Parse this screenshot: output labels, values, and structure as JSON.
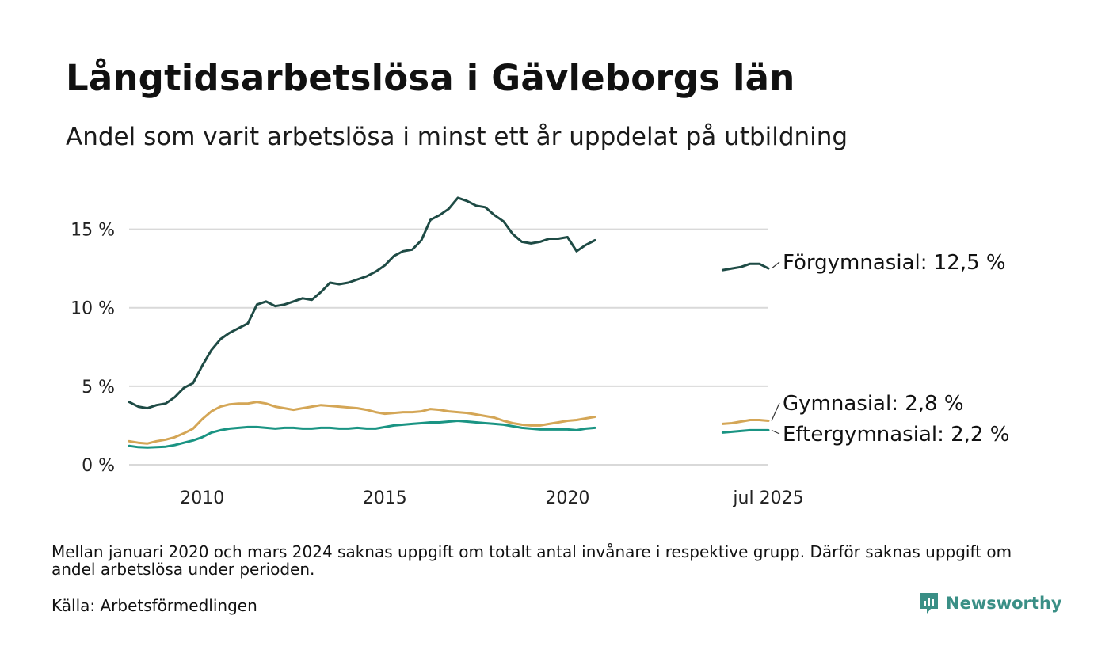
{
  "title": "Långtidsarbetslösa i Gävleborgs län",
  "subtitle": "Andel som varit arbetslösa i minst ett år uppdelat på utbildning",
  "note": "Mellan januari 2020 och mars 2024 saknas uppgift om totalt antal invånare i respektive grupp. Därför saknas uppgift om andel arbetslösa under perioden.",
  "source": "Källa: Arbetsförmedlingen",
  "brand": "Newsworthy",
  "colors": {
    "forgymnasial": "#1e4b45",
    "gymnasial": "#d4a656",
    "eftergymnasial": "#1a9483",
    "grid": "#d9d9d9",
    "brand": "#3a8f86"
  },
  "chart_data": {
    "type": "line",
    "ylim": [
      0,
      17.5
    ],
    "yticks": [
      0,
      5,
      10,
      15
    ],
    "ytick_labels": [
      "0 %",
      "5 %",
      "10 %",
      "15 %"
    ],
    "xtick_labels": [
      {
        "x": 2010,
        "label": "2010"
      },
      {
        "x": 2015,
        "label": "2015"
      },
      {
        "x": 2020,
        "label": "2020"
      },
      {
        "x": 2025.5,
        "label": "jul 2025"
      }
    ],
    "series": [
      {
        "key": "forgymnasial",
        "label": "Förgymnasial: 12,5 %",
        "segments": [
          [
            [
              2008.0,
              4.0
            ],
            [
              2008.25,
              3.7
            ],
            [
              2008.5,
              3.6
            ],
            [
              2008.75,
              3.8
            ],
            [
              2009.0,
              3.9
            ],
            [
              2009.25,
              4.3
            ],
            [
              2009.5,
              4.9
            ],
            [
              2009.75,
              5.2
            ],
            [
              2010.0,
              6.3
            ],
            [
              2010.25,
              7.3
            ],
            [
              2010.5,
              8.0
            ],
            [
              2010.75,
              8.4
            ],
            [
              2011.0,
              8.7
            ],
            [
              2011.25,
              9.0
            ],
            [
              2011.5,
              10.2
            ],
            [
              2011.75,
              10.4
            ],
            [
              2012.0,
              10.1
            ],
            [
              2012.25,
              10.2
            ],
            [
              2012.5,
              10.4
            ],
            [
              2012.75,
              10.6
            ],
            [
              2013.0,
              10.5
            ],
            [
              2013.25,
              11.0
            ],
            [
              2013.5,
              11.6
            ],
            [
              2013.75,
              11.5
            ],
            [
              2014.0,
              11.6
            ],
            [
              2014.25,
              11.8
            ],
            [
              2014.5,
              12.0
            ],
            [
              2014.75,
              12.3
            ],
            [
              2015.0,
              12.7
            ],
            [
              2015.25,
              13.3
            ],
            [
              2015.5,
              13.6
            ],
            [
              2015.75,
              13.7
            ],
            [
              2016.0,
              14.3
            ],
            [
              2016.25,
              15.6
            ],
            [
              2016.5,
              15.9
            ],
            [
              2016.75,
              16.3
            ],
            [
              2017.0,
              17.0
            ],
            [
              2017.25,
              16.8
            ],
            [
              2017.5,
              16.5
            ],
            [
              2017.75,
              16.4
            ],
            [
              2018.0,
              15.9
            ],
            [
              2018.25,
              15.5
            ],
            [
              2018.5,
              14.7
            ],
            [
              2018.75,
              14.2
            ],
            [
              2019.0,
              14.1
            ],
            [
              2019.25,
              14.2
            ],
            [
              2019.5,
              14.4
            ],
            [
              2019.75,
              14.4
            ],
            [
              2020.0,
              14.5
            ],
            [
              2020.25,
              13.6
            ],
            [
              2020.5,
              14.0
            ],
            [
              2020.75,
              14.3
            ]
          ],
          [
            [
              2024.25,
              12.4
            ],
            [
              2024.5,
              12.5
            ],
            [
              2024.75,
              12.6
            ],
            [
              2025.0,
              12.8
            ],
            [
              2025.25,
              12.8
            ],
            [
              2025.5,
              12.5
            ]
          ]
        ]
      },
      {
        "key": "gymnasial",
        "label": "Gymnasial:  2,8 %",
        "segments": [
          [
            [
              2008.0,
              1.5
            ],
            [
              2008.25,
              1.4
            ],
            [
              2008.5,
              1.35
            ],
            [
              2008.75,
              1.5
            ],
            [
              2009.0,
              1.6
            ],
            [
              2009.25,
              1.75
            ],
            [
              2009.5,
              2.0
            ],
            [
              2009.75,
              2.3
            ],
            [
              2010.0,
              2.9
            ],
            [
              2010.25,
              3.4
            ],
            [
              2010.5,
              3.7
            ],
            [
              2010.75,
              3.85
            ],
            [
              2011.0,
              3.9
            ],
            [
              2011.25,
              3.9
            ],
            [
              2011.5,
              4.0
            ],
            [
              2011.75,
              3.9
            ],
            [
              2012.0,
              3.7
            ],
            [
              2012.25,
              3.6
            ],
            [
              2012.5,
              3.5
            ],
            [
              2012.75,
              3.6
            ],
            [
              2013.0,
              3.7
            ],
            [
              2013.25,
              3.8
            ],
            [
              2013.5,
              3.75
            ],
            [
              2013.75,
              3.7
            ],
            [
              2014.0,
              3.65
            ],
            [
              2014.25,
              3.6
            ],
            [
              2014.5,
              3.5
            ],
            [
              2014.75,
              3.35
            ],
            [
              2015.0,
              3.25
            ],
            [
              2015.25,
              3.3
            ],
            [
              2015.5,
              3.35
            ],
            [
              2015.75,
              3.35
            ],
            [
              2016.0,
              3.4
            ],
            [
              2016.25,
              3.55
            ],
            [
              2016.5,
              3.5
            ],
            [
              2016.75,
              3.4
            ],
            [
              2017.0,
              3.35
            ],
            [
              2017.25,
              3.3
            ],
            [
              2017.5,
              3.2
            ],
            [
              2017.75,
              3.1
            ],
            [
              2018.0,
              3.0
            ],
            [
              2018.25,
              2.8
            ],
            [
              2018.5,
              2.65
            ],
            [
              2018.75,
              2.55
            ],
            [
              2019.0,
              2.5
            ],
            [
              2019.25,
              2.5
            ],
            [
              2019.5,
              2.6
            ],
            [
              2019.75,
              2.7
            ],
            [
              2020.0,
              2.8
            ],
            [
              2020.25,
              2.85
            ],
            [
              2020.5,
              2.95
            ],
            [
              2020.75,
              3.05
            ]
          ],
          [
            [
              2024.25,
              2.6
            ],
            [
              2024.5,
              2.65
            ],
            [
              2024.75,
              2.75
            ],
            [
              2025.0,
              2.85
            ],
            [
              2025.25,
              2.85
            ],
            [
              2025.5,
              2.8
            ]
          ]
        ]
      },
      {
        "key": "eftergymnasial",
        "label": "Eftergymnasial:  2,2 %",
        "segments": [
          [
            [
              2008.0,
              1.2
            ],
            [
              2008.25,
              1.12
            ],
            [
              2008.5,
              1.1
            ],
            [
              2008.75,
              1.12
            ],
            [
              2009.0,
              1.15
            ],
            [
              2009.25,
              1.25
            ],
            [
              2009.5,
              1.4
            ],
            [
              2009.75,
              1.55
            ],
            [
              2010.0,
              1.75
            ],
            [
              2010.25,
              2.05
            ],
            [
              2010.5,
              2.2
            ],
            [
              2010.75,
              2.3
            ],
            [
              2011.0,
              2.35
            ],
            [
              2011.25,
              2.4
            ],
            [
              2011.5,
              2.4
            ],
            [
              2011.75,
              2.35
            ],
            [
              2012.0,
              2.3
            ],
            [
              2012.25,
              2.35
            ],
            [
              2012.5,
              2.35
            ],
            [
              2012.75,
              2.3
            ],
            [
              2013.0,
              2.3
            ],
            [
              2013.25,
              2.35
            ],
            [
              2013.5,
              2.35
            ],
            [
              2013.75,
              2.3
            ],
            [
              2014.0,
              2.3
            ],
            [
              2014.25,
              2.35
            ],
            [
              2014.5,
              2.3
            ],
            [
              2014.75,
              2.3
            ],
            [
              2015.0,
              2.4
            ],
            [
              2015.25,
              2.5
            ],
            [
              2015.5,
              2.55
            ],
            [
              2015.75,
              2.6
            ],
            [
              2016.0,
              2.65
            ],
            [
              2016.25,
              2.7
            ],
            [
              2016.5,
              2.7
            ],
            [
              2016.75,
              2.75
            ],
            [
              2017.0,
              2.8
            ],
            [
              2017.25,
              2.75
            ],
            [
              2017.5,
              2.7
            ],
            [
              2017.75,
              2.65
            ],
            [
              2018.0,
              2.6
            ],
            [
              2018.25,
              2.55
            ],
            [
              2018.5,
              2.45
            ],
            [
              2018.75,
              2.35
            ],
            [
              2019.0,
              2.3
            ],
            [
              2019.25,
              2.25
            ],
            [
              2019.5,
              2.25
            ],
            [
              2019.75,
              2.25
            ],
            [
              2020.0,
              2.25
            ],
            [
              2020.25,
              2.2
            ],
            [
              2020.5,
              2.3
            ],
            [
              2020.75,
              2.35
            ]
          ],
          [
            [
              2024.25,
              2.05
            ],
            [
              2024.5,
              2.1
            ],
            [
              2024.75,
              2.15
            ],
            [
              2025.0,
              2.2
            ],
            [
              2025.25,
              2.2
            ],
            [
              2025.5,
              2.2
            ]
          ]
        ]
      }
    ]
  }
}
